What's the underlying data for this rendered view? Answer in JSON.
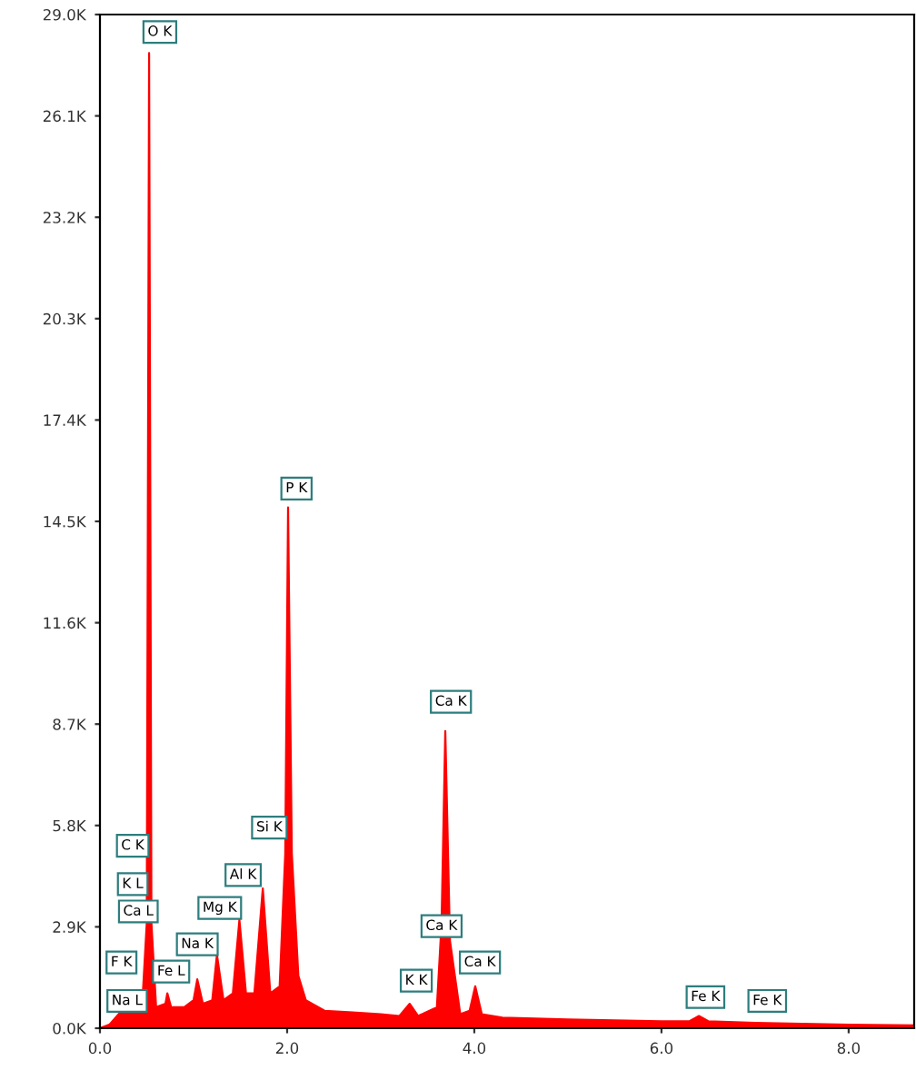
{
  "chart_data": {
    "type": "area",
    "xlim": [
      0,
      8.7
    ],
    "ylim": [
      0,
      29000
    ],
    "xticks": [
      {
        "value": 0,
        "label": "0.0"
      },
      {
        "value": 2,
        "label": "2.0"
      },
      {
        "value": 4,
        "label": "4.0"
      },
      {
        "value": 6,
        "label": "6.0"
      },
      {
        "value": 8,
        "label": "8.0"
      }
    ],
    "yticks": [
      {
        "value": 0,
        "label": "0.0K"
      },
      {
        "value": 2900,
        "label": "2.9K"
      },
      {
        "value": 5800,
        "label": "5.8K"
      },
      {
        "value": 8700,
        "label": "8.7K"
      },
      {
        "value": 11600,
        "label": "11.6K"
      },
      {
        "value": 14500,
        "label": "14.5K"
      },
      {
        "value": 17400,
        "label": "17.4K"
      },
      {
        "value": 20300,
        "label": "20.3K"
      },
      {
        "value": 23200,
        "label": "23.2K"
      },
      {
        "value": 26100,
        "label": "26.1K"
      },
      {
        "value": 29000,
        "label": "29.0K"
      }
    ],
    "grid": false,
    "series": [
      {
        "color": "#ff0000",
        "x": [
          0.0,
          0.1,
          0.2,
          0.28,
          0.35,
          0.45,
          0.5,
          0.525,
          0.55,
          0.6,
          0.7,
          0.72,
          0.76,
          0.9,
          1.0,
          1.04,
          1.1,
          1.2,
          1.25,
          1.32,
          1.42,
          1.49,
          1.56,
          1.65,
          1.74,
          1.82,
          1.92,
          1.98,
          2.01,
          2.05,
          2.12,
          2.2,
          2.4,
          2.7,
          3.0,
          3.2,
          3.31,
          3.4,
          3.6,
          3.65,
          3.69,
          3.74,
          3.85,
          3.95,
          4.01,
          4.08,
          4.3,
          5.0,
          6.0,
          6.3,
          6.4,
          6.5,
          7.0,
          8.0,
          8.7
        ],
        "values": [
          0,
          100,
          400,
          700,
          500,
          600,
          3000,
          27900,
          3000,
          600,
          700,
          1000,
          600,
          600,
          800,
          1400,
          700,
          800,
          2100,
          800,
          1000,
          3100,
          1000,
          1000,
          4000,
          1000,
          1200,
          5000,
          14900,
          5000,
          1500,
          800,
          500,
          450,
          400,
          350,
          700,
          350,
          600,
          3000,
          8500,
          2500,
          400,
          500,
          1200,
          400,
          300,
          250,
          200,
          200,
          350,
          200,
          150,
          100,
          80
        ]
      }
    ],
    "annotations": [
      {
        "text": "O K",
        "x": 0.64,
        "y": 28500
      },
      {
        "text": "P K",
        "x": 2.1,
        "y": 15440
      },
      {
        "text": "Ca K",
        "x": 3.75,
        "y": 9340
      },
      {
        "text": "Si K",
        "x": 1.81,
        "y": 5740
      },
      {
        "text": "Al K",
        "x": 1.53,
        "y": 4380
      },
      {
        "text": "Mg K",
        "x": 1.28,
        "y": 3440
      },
      {
        "text": "Na K",
        "x": 1.04,
        "y": 2400
      },
      {
        "text": "Fe L",
        "x": 0.76,
        "y": 1620
      },
      {
        "text": "C K",
        "x": 0.35,
        "y": 5220
      },
      {
        "text": "K L",
        "x": 0.35,
        "y": 4120
      },
      {
        "text": "Ca L",
        "x": 0.41,
        "y": 3340
      },
      {
        "text": "F K",
        "x": 0.23,
        "y": 1880
      },
      {
        "text": "Na L",
        "x": 0.29,
        "y": 780
      },
      {
        "text": "K K",
        "x": 3.38,
        "y": 1360
      },
      {
        "text": "Ca K",
        "x": 3.65,
        "y": 2920
      },
      {
        "text": "Ca K",
        "x": 4.06,
        "y": 1880
      },
      {
        "text": "Fe K",
        "x": 6.47,
        "y": 890
      },
      {
        "text": "Fe K",
        "x": 7.13,
        "y": 780
      }
    ]
  }
}
